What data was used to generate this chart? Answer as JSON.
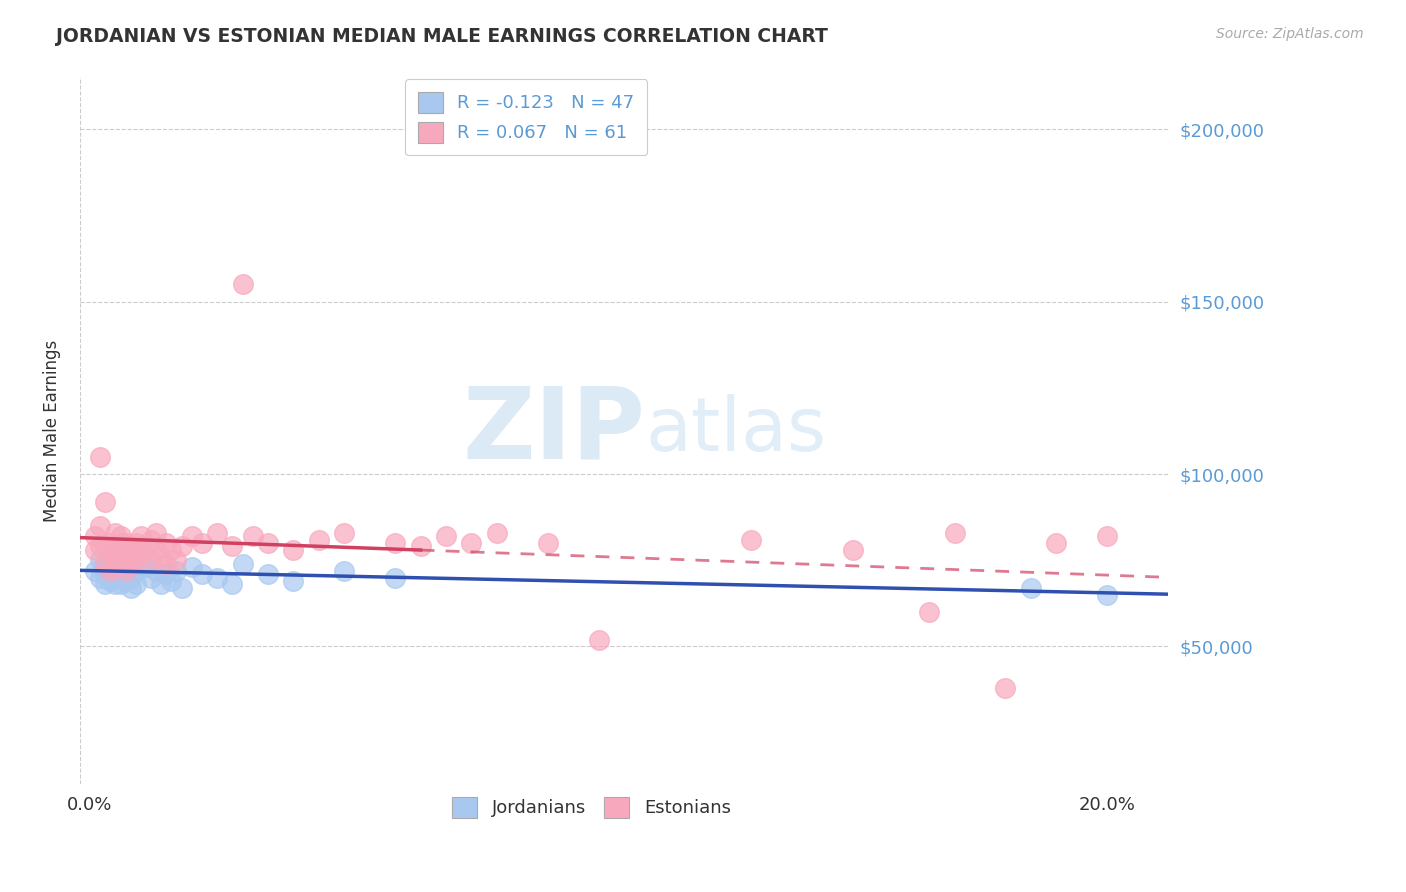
{
  "title": "JORDANIAN VS ESTONIAN MEDIAN MALE EARNINGS CORRELATION CHART",
  "source": "Source: ZipAtlas.com",
  "ylabel": "Median Male Earnings",
  "ytick_labels": [
    "$50,000",
    "$100,000",
    "$150,000",
    "$200,000"
  ],
  "ytick_values": [
    50000,
    100000,
    150000,
    200000
  ],
  "ymin": 10000,
  "ymax": 215000,
  "xmin": -0.002,
  "xmax": 0.212,
  "legend_r1": "R = -0.123   N = 47",
  "legend_r2": "R = 0.067   N = 61",
  "legend_label1": "Jordanians",
  "legend_label2": "Estonians",
  "jordanian_color": "#A8C8F0",
  "estonian_color": "#F8A8BC",
  "jordanian_line_color": "#3050B0",
  "estonian_line_color": "#D04060",
  "text_color_blue": "#5B9BD5",
  "text_color_dark": "#333333",
  "grid_color": "#CCCCCC",
  "source_color": "#AAAAAA",
  "jordanian_scatter_x": [
    0.001,
    0.002,
    0.002,
    0.003,
    0.003,
    0.003,
    0.004,
    0.004,
    0.004,
    0.005,
    0.005,
    0.005,
    0.005,
    0.006,
    0.006,
    0.006,
    0.006,
    0.007,
    0.007,
    0.007,
    0.007,
    0.008,
    0.008,
    0.008,
    0.009,
    0.009,
    0.01,
    0.01,
    0.011,
    0.012,
    0.013,
    0.014,
    0.015,
    0.016,
    0.017,
    0.018,
    0.02,
    0.022,
    0.025,
    0.028,
    0.03,
    0.035,
    0.04,
    0.05,
    0.06,
    0.185,
    0.2
  ],
  "jordanian_scatter_y": [
    72000,
    70000,
    75000,
    68000,
    73000,
    71000,
    69000,
    74000,
    70000,
    76000,
    72000,
    68000,
    74000,
    80000,
    77000,
    72000,
    68000,
    75000,
    71000,
    74000,
    69000,
    73000,
    70000,
    67000,
    72000,
    68000,
    79000,
    74000,
    73000,
    70000,
    72000,
    68000,
    71000,
    69000,
    72000,
    67000,
    73000,
    71000,
    70000,
    68000,
    74000,
    71000,
    69000,
    72000,
    70000,
    67000,
    65000
  ],
  "estonian_scatter_x": [
    0.001,
    0.001,
    0.002,
    0.002,
    0.002,
    0.003,
    0.003,
    0.003,
    0.004,
    0.004,
    0.004,
    0.005,
    0.005,
    0.005,
    0.006,
    0.006,
    0.006,
    0.007,
    0.007,
    0.007,
    0.008,
    0.008,
    0.009,
    0.009,
    0.01,
    0.01,
    0.011,
    0.012,
    0.012,
    0.013,
    0.013,
    0.014,
    0.015,
    0.015,
    0.016,
    0.017,
    0.018,
    0.02,
    0.022,
    0.025,
    0.028,
    0.03,
    0.032,
    0.035,
    0.04,
    0.045,
    0.05,
    0.06,
    0.065,
    0.07,
    0.075,
    0.08,
    0.09,
    0.1,
    0.13,
    0.15,
    0.165,
    0.17,
    0.18,
    0.19,
    0.2
  ],
  "estonian_scatter_y": [
    82000,
    78000,
    85000,
    79000,
    105000,
    92000,
    78000,
    74000,
    80000,
    77000,
    72000,
    83000,
    78000,
    73000,
    82000,
    78000,
    74000,
    80000,
    76000,
    72000,
    78000,
    74000,
    80000,
    75000,
    82000,
    77000,
    79000,
    81000,
    75000,
    83000,
    78000,
    76000,
    80000,
    74000,
    78000,
    75000,
    79000,
    82000,
    80000,
    83000,
    79000,
    155000,
    82000,
    80000,
    78000,
    81000,
    83000,
    80000,
    79000,
    82000,
    80000,
    83000,
    80000,
    52000,
    81000,
    78000,
    60000,
    83000,
    38000,
    80000,
    82000
  ],
  "watermark_zip": "ZIP",
  "watermark_atlas": "atlas"
}
